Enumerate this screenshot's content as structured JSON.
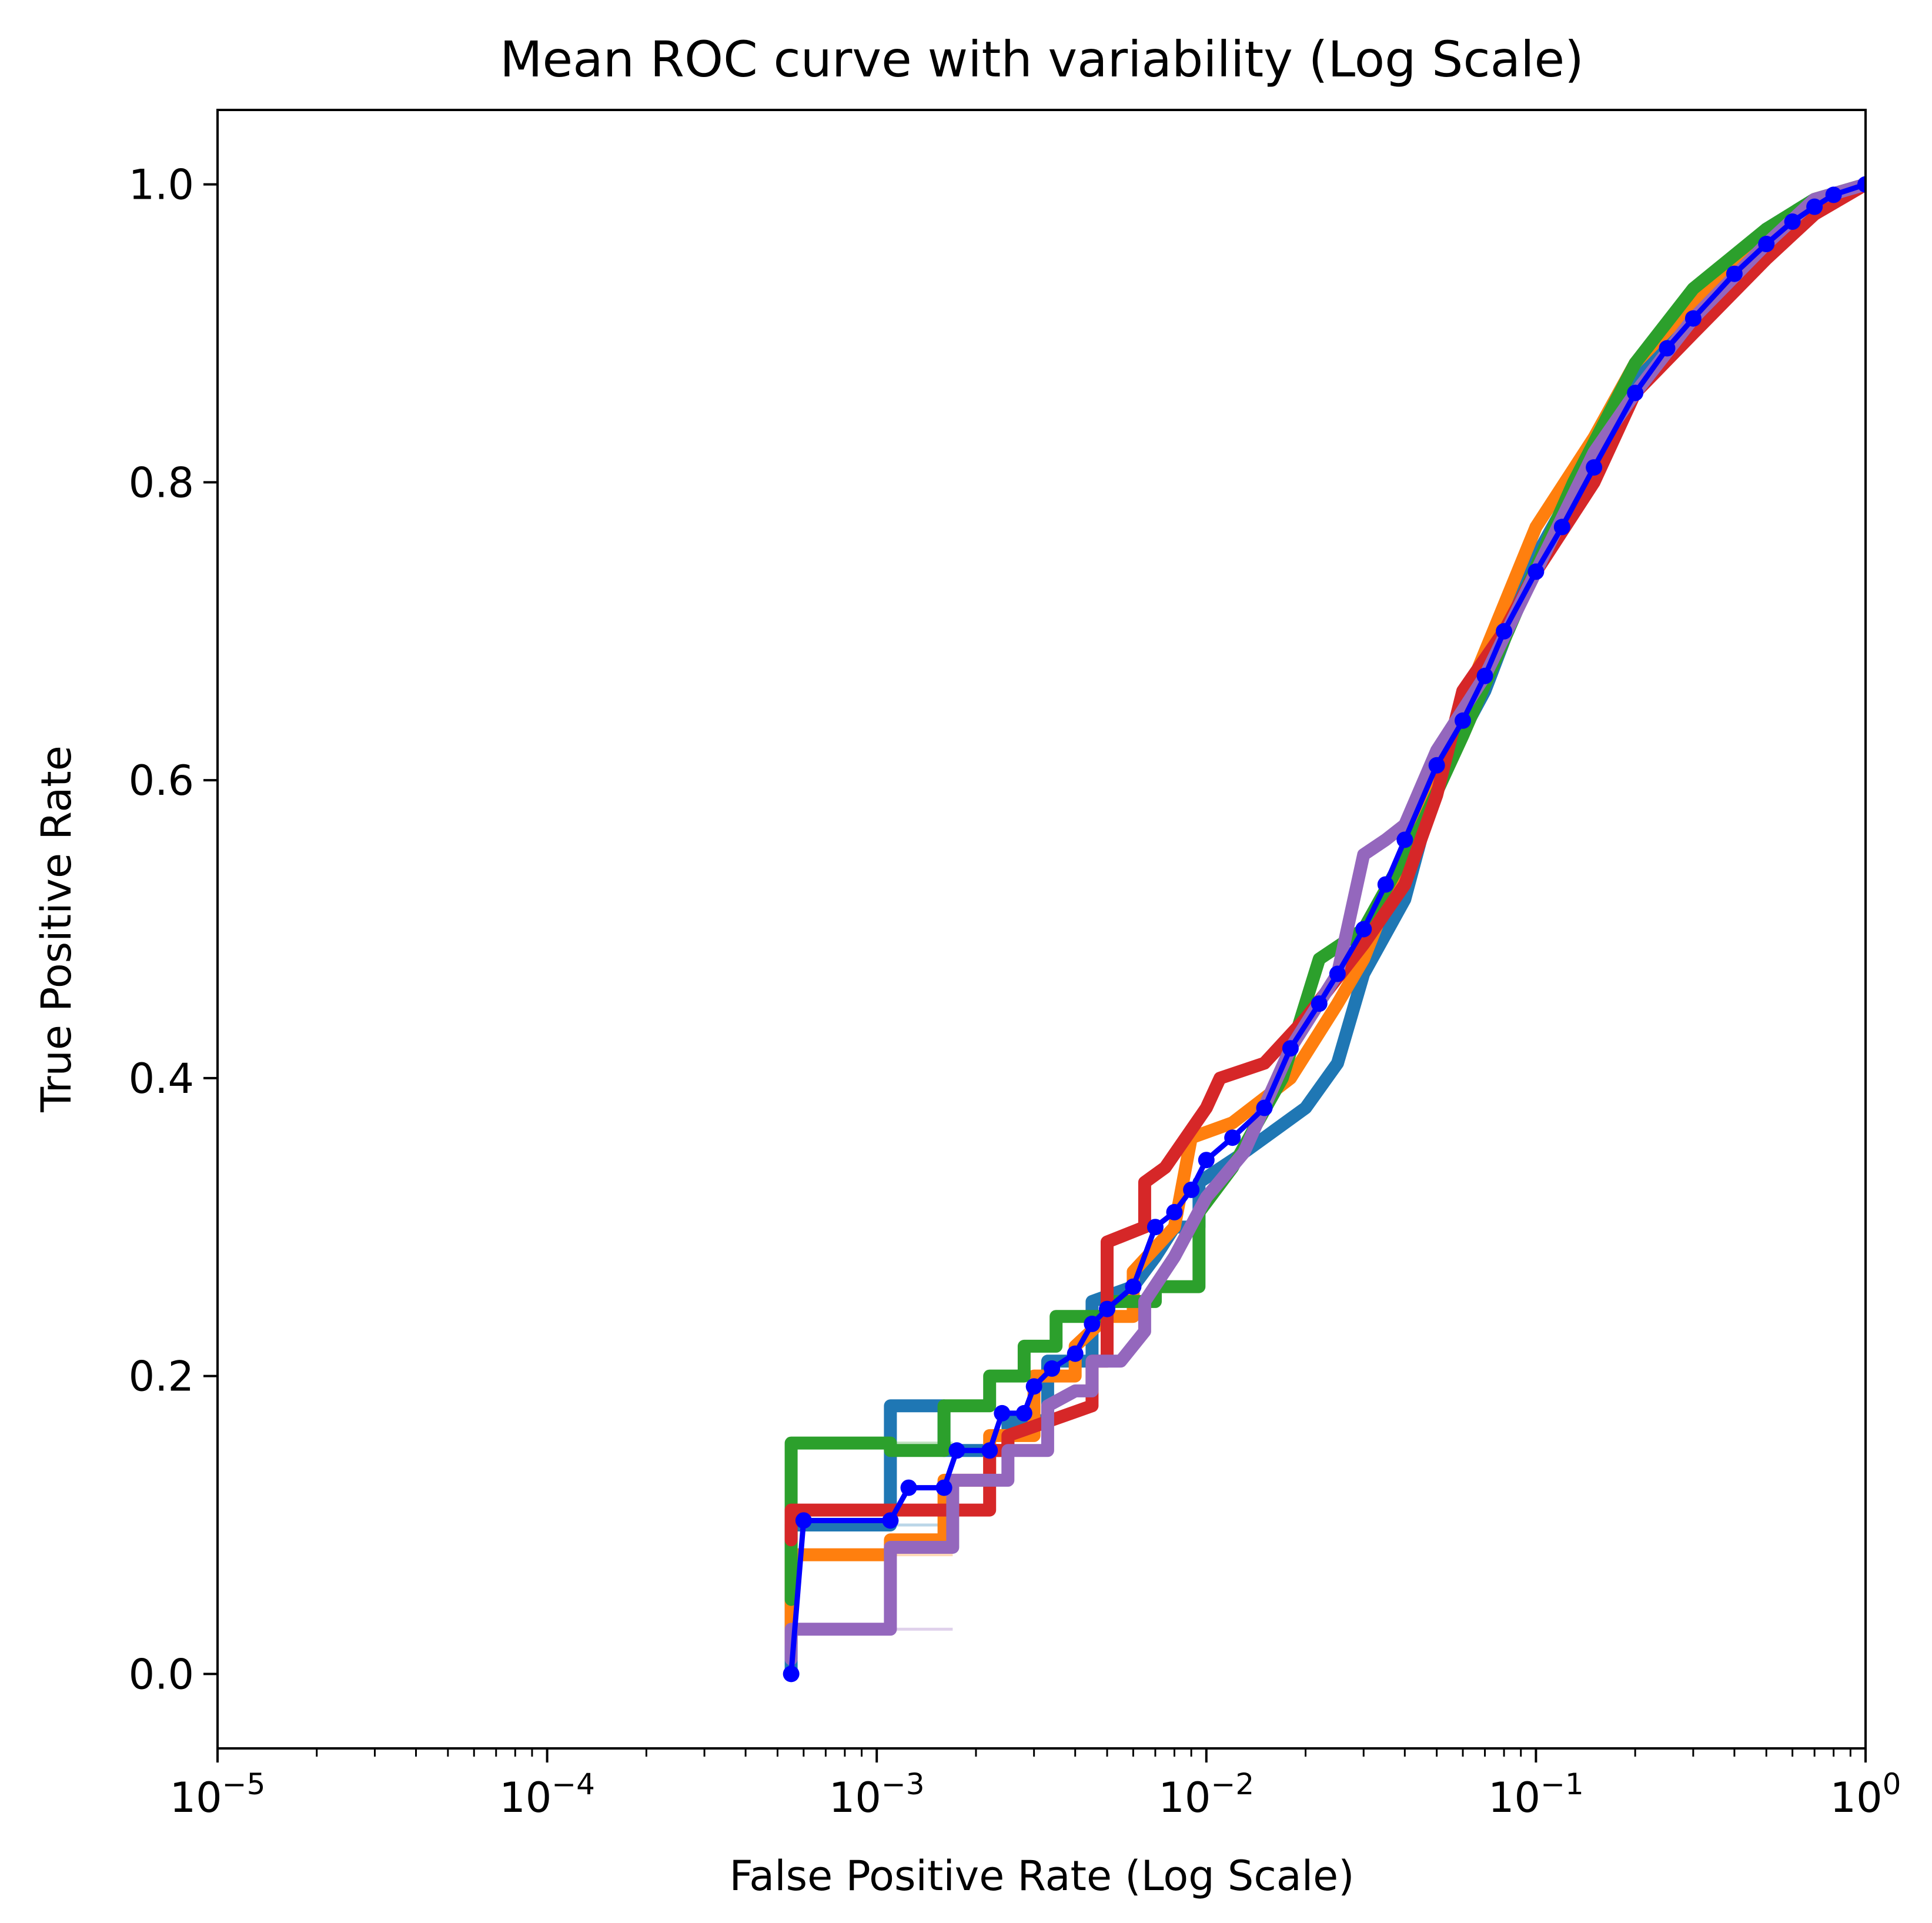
{
  "chart_data": {
    "type": "line",
    "title": "Mean ROC curve with variability (Log Scale)",
    "xlabel": "False Positive Rate (Log Scale)",
    "ylabel": "True Positive Rate",
    "xscale": "log",
    "xlim": [
      1e-05,
      1
    ],
    "ylim": [
      -0.05,
      1.05
    ],
    "x_ticks": [
      {
        "base": "10",
        "exp": "−5",
        "value": 1e-05
      },
      {
        "base": "10",
        "exp": "−4",
        "value": 0.0001
      },
      {
        "base": "10",
        "exp": "−3",
        "value": 0.001
      },
      {
        "base": "10",
        "exp": "−2",
        "value": 0.01
      },
      {
        "base": "10",
        "exp": "−1",
        "value": 0.1
      },
      {
        "base": "10",
        "exp": "0",
        "value": 1
      }
    ],
    "y_ticks": [
      {
        "label": "0.0",
        "value": 0.0
      },
      {
        "label": "0.2",
        "value": 0.2
      },
      {
        "label": "0.4",
        "value": 0.4
      },
      {
        "label": "0.6",
        "value": 0.6
      },
      {
        "label": "0.8",
        "value": 0.8
      },
      {
        "label": "1.0",
        "value": 1.0
      }
    ],
    "grid": false,
    "legend": "none",
    "series": [
      {
        "color": "#1f77b4",
        "style": "fold",
        "points": [
          [
            0.00055,
            0.0
          ],
          [
            0.00055,
            0.1
          ],
          [
            0.0011,
            0.1
          ],
          [
            0.0011,
            0.18
          ],
          [
            0.0016,
            0.18
          ],
          [
            0.0016,
            0.15
          ],
          [
            0.0025,
            0.15
          ],
          [
            0.0025,
            0.17
          ],
          [
            0.0033,
            0.17
          ],
          [
            0.0033,
            0.21
          ],
          [
            0.0045,
            0.21
          ],
          [
            0.0045,
            0.25
          ],
          [
            0.006,
            0.26
          ],
          [
            0.007,
            0.28
          ],
          [
            0.008,
            0.3
          ],
          [
            0.0095,
            0.3
          ],
          [
            0.0095,
            0.33
          ],
          [
            0.013,
            0.35
          ],
          [
            0.02,
            0.38
          ],
          [
            0.025,
            0.41
          ],
          [
            0.03,
            0.47
          ],
          [
            0.04,
            0.52
          ],
          [
            0.05,
            0.6
          ],
          [
            0.07,
            0.66
          ],
          [
            0.1,
            0.75
          ],
          [
            0.15,
            0.82
          ],
          [
            0.2,
            0.87
          ],
          [
            0.3,
            0.92
          ],
          [
            0.5,
            0.97
          ],
          [
            0.7,
            0.99
          ],
          [
            1.0,
            1.0
          ]
        ]
      },
      {
        "color": "#ff7f0e",
        "style": "fold",
        "points": [
          [
            0.00055,
            0.02
          ],
          [
            0.00055,
            0.08
          ],
          [
            0.0011,
            0.08
          ],
          [
            0.0011,
            0.09
          ],
          [
            0.0016,
            0.09
          ],
          [
            0.0016,
            0.13
          ],
          [
            0.0022,
            0.13
          ],
          [
            0.0022,
            0.16
          ],
          [
            0.003,
            0.16
          ],
          [
            0.003,
            0.2
          ],
          [
            0.004,
            0.2
          ],
          [
            0.004,
            0.22
          ],
          [
            0.005,
            0.24
          ],
          [
            0.006,
            0.24
          ],
          [
            0.006,
            0.27
          ],
          [
            0.008,
            0.3
          ],
          [
            0.009,
            0.36
          ],
          [
            0.012,
            0.37
          ],
          [
            0.018,
            0.4
          ],
          [
            0.025,
            0.45
          ],
          [
            0.03,
            0.48
          ],
          [
            0.04,
            0.55
          ],
          [
            0.06,
            0.65
          ],
          [
            0.1,
            0.77
          ],
          [
            0.15,
            0.83
          ],
          [
            0.2,
            0.88
          ],
          [
            0.3,
            0.92
          ],
          [
            0.5,
            0.96
          ],
          [
            0.7,
            0.99
          ],
          [
            1.0,
            1.0
          ]
        ]
      },
      {
        "color": "#2ca02c",
        "style": "fold",
        "points": [
          [
            0.00055,
            0.05
          ],
          [
            0.00055,
            0.155
          ],
          [
            0.0011,
            0.155
          ],
          [
            0.0011,
            0.15
          ],
          [
            0.0016,
            0.15
          ],
          [
            0.0016,
            0.18
          ],
          [
            0.0022,
            0.18
          ],
          [
            0.0022,
            0.2
          ],
          [
            0.0028,
            0.2
          ],
          [
            0.0028,
            0.22
          ],
          [
            0.0035,
            0.22
          ],
          [
            0.0035,
            0.24
          ],
          [
            0.005,
            0.24
          ],
          [
            0.005,
            0.25
          ],
          [
            0.007,
            0.25
          ],
          [
            0.007,
            0.26
          ],
          [
            0.0095,
            0.26
          ],
          [
            0.0095,
            0.31
          ],
          [
            0.012,
            0.34
          ],
          [
            0.017,
            0.4
          ],
          [
            0.022,
            0.48
          ],
          [
            0.03,
            0.5
          ],
          [
            0.045,
            0.57
          ],
          [
            0.06,
            0.63
          ],
          [
            0.09,
            0.72
          ],
          [
            0.13,
            0.8
          ],
          [
            0.2,
            0.88
          ],
          [
            0.3,
            0.93
          ],
          [
            0.5,
            0.97
          ],
          [
            0.7,
            0.99
          ],
          [
            1.0,
            1.0
          ]
        ]
      },
      {
        "color": "#d62728",
        "style": "fold",
        "points": [
          [
            0.00055,
            0.09
          ],
          [
            0.00055,
            0.11
          ],
          [
            0.0011,
            0.11
          ],
          [
            0.0011,
            0.11
          ],
          [
            0.0022,
            0.11
          ],
          [
            0.0022,
            0.15
          ],
          [
            0.0025,
            0.15
          ],
          [
            0.0025,
            0.16
          ],
          [
            0.0045,
            0.18
          ],
          [
            0.0045,
            0.21
          ],
          [
            0.005,
            0.21
          ],
          [
            0.005,
            0.29
          ],
          [
            0.0065,
            0.3
          ],
          [
            0.0065,
            0.33
          ],
          [
            0.0075,
            0.34
          ],
          [
            0.01,
            0.38
          ],
          [
            0.011,
            0.4
          ],
          [
            0.015,
            0.41
          ],
          [
            0.02,
            0.44
          ],
          [
            0.03,
            0.49
          ],
          [
            0.04,
            0.53
          ],
          [
            0.05,
            0.59
          ],
          [
            0.06,
            0.66
          ],
          [
            0.08,
            0.7
          ],
          [
            0.1,
            0.74
          ],
          [
            0.15,
            0.8
          ],
          [
            0.2,
            0.86
          ],
          [
            0.3,
            0.9
          ],
          [
            0.5,
            0.95
          ],
          [
            0.7,
            0.98
          ],
          [
            1.0,
            1.0
          ]
        ]
      },
      {
        "color": "#9467bd",
        "style": "fold",
        "points": [
          [
            0.00055,
            0.01
          ],
          [
            0.00055,
            0.03
          ],
          [
            0.0011,
            0.03
          ],
          [
            0.0011,
            0.085
          ],
          [
            0.0017,
            0.085
          ],
          [
            0.0017,
            0.13
          ],
          [
            0.0025,
            0.13
          ],
          [
            0.0025,
            0.15
          ],
          [
            0.0033,
            0.15
          ],
          [
            0.0033,
            0.18
          ],
          [
            0.004,
            0.19
          ],
          [
            0.0045,
            0.19
          ],
          [
            0.0045,
            0.21
          ],
          [
            0.0055,
            0.21
          ],
          [
            0.0065,
            0.23
          ],
          [
            0.0065,
            0.25
          ],
          [
            0.008,
            0.28
          ],
          [
            0.01,
            0.32
          ],
          [
            0.013,
            0.35
          ],
          [
            0.018,
            0.42
          ],
          [
            0.025,
            0.47
          ],
          [
            0.03,
            0.55
          ],
          [
            0.035,
            0.56
          ],
          [
            0.04,
            0.57
          ],
          [
            0.05,
            0.62
          ],
          [
            0.07,
            0.67
          ],
          [
            0.1,
            0.74
          ],
          [
            0.15,
            0.82
          ],
          [
            0.2,
            0.86
          ],
          [
            0.3,
            0.91
          ],
          [
            0.5,
            0.96
          ],
          [
            0.7,
            0.99
          ],
          [
            1.0,
            1.0
          ]
        ]
      },
      {
        "name": "",
        "color": "#0000ff",
        "style": "mean",
        "points": [
          [
            0.00055,
            0.0
          ],
          [
            0.0006,
            0.103
          ],
          [
            0.0011,
            0.103
          ],
          [
            0.00125,
            0.125
          ],
          [
            0.0016,
            0.125
          ],
          [
            0.00175,
            0.15
          ],
          [
            0.0022,
            0.15
          ],
          [
            0.0024,
            0.175
          ],
          [
            0.0028,
            0.175
          ],
          [
            0.003,
            0.193
          ],
          [
            0.0034,
            0.205
          ],
          [
            0.004,
            0.215
          ],
          [
            0.0045,
            0.235
          ],
          [
            0.005,
            0.245
          ],
          [
            0.006,
            0.26
          ],
          [
            0.007,
            0.3
          ],
          [
            0.008,
            0.31
          ],
          [
            0.009,
            0.325
          ],
          [
            0.01,
            0.345
          ],
          [
            0.012,
            0.36
          ],
          [
            0.015,
            0.38
          ],
          [
            0.018,
            0.42
          ],
          [
            0.022,
            0.45
          ],
          [
            0.025,
            0.47
          ],
          [
            0.03,
            0.5
          ],
          [
            0.035,
            0.53
          ],
          [
            0.04,
            0.56
          ],
          [
            0.05,
            0.61
          ],
          [
            0.06,
            0.64
          ],
          [
            0.07,
            0.67
          ],
          [
            0.08,
            0.7
          ],
          [
            0.1,
            0.74
          ],
          [
            0.12,
            0.77
          ],
          [
            0.15,
            0.81
          ],
          [
            0.2,
            0.86
          ],
          [
            0.25,
            0.89
          ],
          [
            0.3,
            0.91
          ],
          [
            0.4,
            0.94
          ],
          [
            0.5,
            0.96
          ],
          [
            0.6,
            0.975
          ],
          [
            0.7,
            0.985
          ],
          [
            0.8,
            0.993
          ],
          [
            1.0,
            1.0
          ]
        ]
      }
    ]
  }
}
